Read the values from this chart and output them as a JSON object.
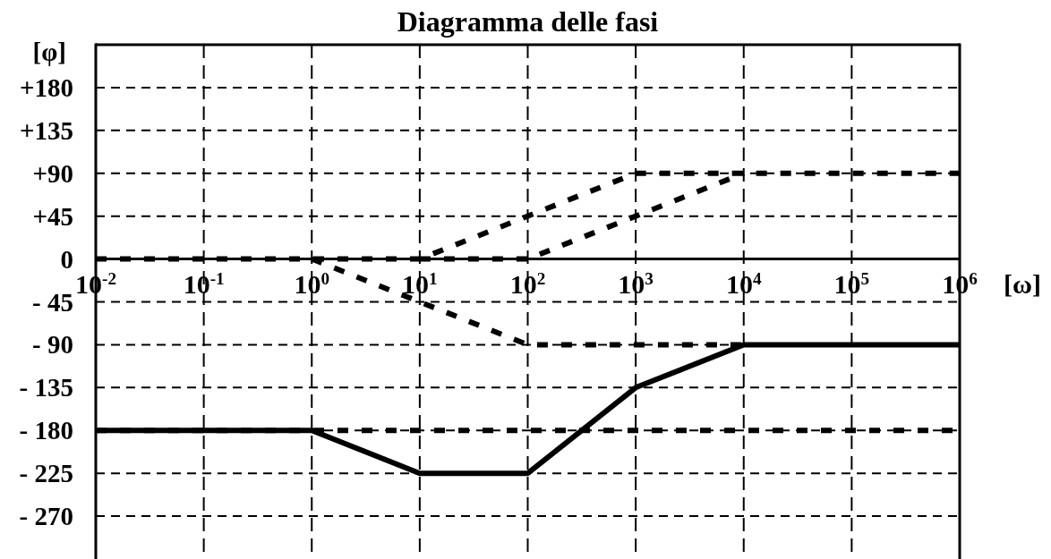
{
  "chart_data": {
    "type": "line",
    "title": "Diagramma delle fasi",
    "xlabel": "[ω]",
    "ylabel": "[φ]",
    "log": "x",
    "grid": true,
    "xlim": [
      0.01,
      1000000
    ],
    "xticks": [
      {
        "value": 0.01,
        "label": "10$^{-2}$"
      },
      {
        "value": 0.1,
        "label": "10$^{-1}$"
      },
      {
        "value": 1,
        "label": "10$^{0}$"
      },
      {
        "value": 10,
        "label": "10$^{1}$"
      },
      {
        "value": 100,
        "label": "10$^{2}$"
      },
      {
        "value": 1000,
        "label": "10$^{3}$"
      },
      {
        "value": 10000,
        "label": "10$^{4}$"
      },
      {
        "value": 100000,
        "label": "10$^{5}$"
      },
      {
        "value": 1000000,
        "label": "10$^{6}$"
      }
    ],
    "ylim": [
      -315,
      225
    ],
    "yticks": [
      {
        "value": 180,
        "label": "+180"
      },
      {
        "value": 135,
        "label": "+135"
      },
      {
        "value": 90,
        "label": "+90"
      },
      {
        "value": 45,
        "label": "+45"
      },
      0,
      {
        "value": -45,
        "label": "- 45"
      },
      {
        "value": -90,
        "label": "- 90"
      },
      {
        "value": -135,
        "label": "- 135"
      },
      {
        "value": -180,
        "label": "- 180"
      },
      {
        "value": -225,
        "label": "- 225"
      },
      {
        "value": -270,
        "label": "- 270"
      }
    ],
    "ref_lines": [
      {
        "axis": "y",
        "value": -180,
        "color": "#000000",
        "line_style": "dashed"
      }
    ],
    "series": [
      {
        "color": "#000000",
        "line_style": "dashed",
        "x": [
          0.01,
          10,
          1000,
          1000000
        ],
        "values": [
          0,
          0,
          90,
          90
        ]
      },
      {
        "color": "#000000",
        "line_style": "dashed",
        "x": [
          10,
          100,
          10000
        ],
        "values": [
          0,
          0,
          90
        ]
      },
      {
        "color": "#000000",
        "line_style": "dashed",
        "x": [
          1,
          100,
          10000
        ],
        "values": [
          0,
          -90,
          -90
        ]
      },
      {
        "color": "#000000",
        "line_style": "solid",
        "x": [
          0.01,
          1,
          10,
          100,
          1000,
          10000,
          1000000
        ],
        "values": [
          -180,
          -180,
          -225,
          -225,
          -135,
          -90,
          -90
        ]
      }
    ]
  }
}
